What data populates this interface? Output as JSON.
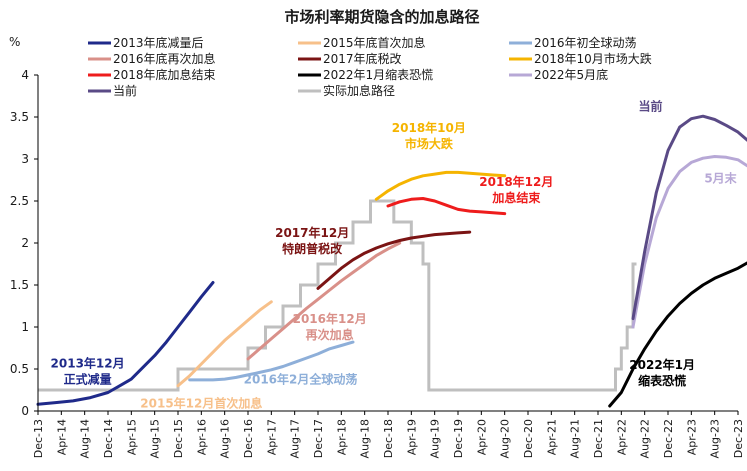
{
  "chart_data": {
    "type": "line",
    "title": "市场利率期货隐含的加息路径",
    "ylabel": "%",
    "ylim": [
      0,
      4
    ],
    "yticks": [
      "0",
      "0.5",
      "1",
      "1.5",
      "2",
      "2.5",
      "3",
      "3.5",
      "4"
    ],
    "grid": false,
    "legend_position": "top",
    "x_tick_labels": [
      "Dec-13",
      "Apr-14",
      "Aug-14",
      "Dec-14",
      "Apr-15",
      "Aug-15",
      "Dec-15",
      "Apr-16",
      "Aug-16",
      "Dec-16",
      "Apr-17",
      "Aug-17",
      "Dec-17",
      "Apr-18",
      "Aug-18",
      "Dec-18",
      "Apr-19",
      "Aug-19",
      "Dec-19",
      "Apr-20",
      "Aug-20",
      "Dec-20",
      "Apr-21",
      "Aug-21",
      "Dec-21",
      "Apr-22",
      "Aug-22",
      "Dec-22",
      "Apr-23",
      "Aug-23",
      "Dec-23"
    ],
    "x_unit": "months since Dec-13 (x tick every 4 months)",
    "series": [
      {
        "name": "2013年底减量后",
        "color": "#1f2a8a",
        "points": [
          [
            0,
            0.08
          ],
          [
            3,
            0.1
          ],
          [
            6,
            0.12
          ],
          [
            9,
            0.16
          ],
          [
            12,
            0.22
          ],
          [
            14,
            0.3
          ],
          [
            16,
            0.38
          ],
          [
            18,
            0.52
          ],
          [
            20,
            0.66
          ],
          [
            22,
            0.82
          ],
          [
            24,
            1.0
          ],
          [
            26,
            1.18
          ],
          [
            28,
            1.36
          ],
          [
            30,
            1.53
          ]
        ]
      },
      {
        "name": "2015年底首次加息",
        "color": "#f7c08a",
        "points": [
          [
            24,
            0.3
          ],
          [
            26,
            0.42
          ],
          [
            28,
            0.56
          ],
          [
            30,
            0.7
          ],
          [
            32,
            0.84
          ],
          [
            34,
            0.96
          ],
          [
            36,
            1.08
          ],
          [
            38,
            1.2
          ],
          [
            40,
            1.3
          ]
        ]
      },
      {
        "name": "2016年初全球动荡",
        "color": "#8eafd9",
        "points": [
          [
            26,
            0.37
          ],
          [
            28,
            0.37
          ],
          [
            30,
            0.37
          ],
          [
            32,
            0.38
          ],
          [
            34,
            0.4
          ],
          [
            36,
            0.43
          ],
          [
            38,
            0.46
          ],
          [
            40,
            0.49
          ],
          [
            42,
            0.53
          ],
          [
            44,
            0.58
          ],
          [
            46,
            0.63
          ],
          [
            48,
            0.68
          ],
          [
            50,
            0.74
          ],
          [
            52,
            0.78
          ],
          [
            54,
            0.82
          ]
        ]
      },
      {
        "name": "2016年底再次加息",
        "color": "#d99089",
        "points": [
          [
            36,
            0.62
          ],
          [
            38,
            0.74
          ],
          [
            40,
            0.86
          ],
          [
            42,
            0.98
          ],
          [
            44,
            1.1
          ],
          [
            46,
            1.22
          ],
          [
            48,
            1.33
          ],
          [
            50,
            1.44
          ],
          [
            52,
            1.55
          ],
          [
            54,
            1.65
          ],
          [
            56,
            1.75
          ],
          [
            58,
            1.85
          ],
          [
            60,
            1.93
          ],
          [
            62,
            2.0
          ]
        ]
      },
      {
        "name": "2017年底税改",
        "color": "#7b1414",
        "points": [
          [
            48,
            1.46
          ],
          [
            50,
            1.58
          ],
          [
            52,
            1.7
          ],
          [
            54,
            1.8
          ],
          [
            56,
            1.88
          ],
          [
            58,
            1.94
          ],
          [
            60,
            1.99
          ],
          [
            62,
            2.03
          ],
          [
            64,
            2.06
          ],
          [
            66,
            2.08
          ],
          [
            68,
            2.1
          ],
          [
            70,
            2.11
          ],
          [
            72,
            2.12
          ],
          [
            74,
            2.13
          ]
        ]
      },
      {
        "name": "2018年10月市场大跌",
        "color": "#f5b400",
        "points": [
          [
            58,
            2.52
          ],
          [
            60,
            2.62
          ],
          [
            62,
            2.7
          ],
          [
            64,
            2.76
          ],
          [
            66,
            2.8
          ],
          [
            68,
            2.82
          ],
          [
            70,
            2.84
          ],
          [
            72,
            2.84
          ],
          [
            74,
            2.83
          ],
          [
            76,
            2.82
          ],
          [
            78,
            2.81
          ],
          [
            80,
            2.8
          ]
        ]
      },
      {
        "name": "2018年底加息结束",
        "color": "#ee1c1c",
        "points": [
          [
            60,
            2.44
          ],
          [
            62,
            2.49
          ],
          [
            64,
            2.52
          ],
          [
            66,
            2.53
          ],
          [
            68,
            2.5
          ],
          [
            70,
            2.45
          ],
          [
            72,
            2.4
          ],
          [
            74,
            2.38
          ],
          [
            76,
            2.37
          ],
          [
            78,
            2.36
          ],
          [
            80,
            2.35
          ]
        ]
      },
      {
        "name": "2022年1月缩表恐慌",
        "color": "#000000",
        "points": [
          [
            98,
            0.06
          ],
          [
            100,
            0.22
          ],
          [
            102,
            0.5
          ],
          [
            104,
            0.74
          ],
          [
            106,
            0.95
          ],
          [
            108,
            1.13
          ],
          [
            110,
            1.28
          ],
          [
            112,
            1.4
          ],
          [
            114,
            1.5
          ],
          [
            116,
            1.58
          ],
          [
            118,
            1.64
          ],
          [
            120,
            1.7
          ],
          [
            122,
            1.78
          ]
        ]
      },
      {
        "name": "2022年5月底",
        "color": "#b7a8d6",
        "points": [
          [
            102,
            1.0
          ],
          [
            104,
            1.75
          ],
          [
            106,
            2.3
          ],
          [
            108,
            2.65
          ],
          [
            110,
            2.85
          ],
          [
            112,
            2.96
          ],
          [
            114,
            3.01
          ],
          [
            116,
            3.03
          ],
          [
            118,
            3.02
          ],
          [
            120,
            2.99
          ],
          [
            122,
            2.9
          ]
        ]
      },
      {
        "name": "当前",
        "color": "#5a4a86",
        "points": [
          [
            102,
            1.1
          ],
          [
            104,
            1.9
          ],
          [
            106,
            2.6
          ],
          [
            108,
            3.1
          ],
          [
            110,
            3.38
          ],
          [
            112,
            3.48
          ],
          [
            114,
            3.51
          ],
          [
            116,
            3.47
          ],
          [
            118,
            3.4
          ],
          [
            120,
            3.32
          ],
          [
            122,
            3.2
          ]
        ]
      },
      {
        "name": "实际加息路径",
        "color": "#bfbfbf",
        "steps": [
          [
            0,
            0.25
          ],
          [
            24,
            0.5
          ],
          [
            36,
            0.75
          ],
          [
            39,
            1.0
          ],
          [
            42,
            1.25
          ],
          [
            45,
            1.5
          ],
          [
            48,
            1.75
          ],
          [
            51,
            2.0
          ],
          [
            54,
            2.25
          ],
          [
            57,
            2.5
          ],
          [
            61,
            2.25
          ],
          [
            64,
            2.0
          ],
          [
            66,
            1.75
          ],
          [
            67,
            0.25
          ],
          [
            99,
            0.5
          ],
          [
            100,
            0.75
          ],
          [
            101,
            1.0
          ],
          [
            102,
            1.75
          ]
        ]
      }
    ],
    "legend": [
      {
        "label": "2013年底减量后",
        "color": "#1f2a8a"
      },
      {
        "label": "2015年底首次加息",
        "color": "#f7c08a"
      },
      {
        "label": "2016年初全球动荡",
        "color": "#8eafd9"
      },
      {
        "label": "2016年底再次加息",
        "color": "#d99089"
      },
      {
        "label": "2017年底税改",
        "color": "#7b1414"
      },
      {
        "label": "2018年10月市场大跌",
        "color": "#f5b400"
      },
      {
        "label": "2018年底加息结束",
        "color": "#ee1c1c"
      },
      {
        "label": "2022年1月缩表恐慌",
        "color": "#000000"
      },
      {
        "label": "2022年5月底",
        "color": "#b7a8d6"
      },
      {
        "label": "当前",
        "color": "#5a4a86"
      },
      {
        "label": "实际加息路径",
        "color": "#bfbfbf"
      }
    ],
    "annotations": [
      {
        "lines": [
          "2013年12月",
          "正式减量"
        ],
        "color": "#1f2a8a",
        "at": [
          8.5,
          0.52
        ]
      },
      {
        "lines": [
          "2015年12月首次加息"
        ],
        "color": "#f7c08a",
        "at": [
          28,
          0.04
        ]
      },
      {
        "lines": [
          "2016年2月全球动荡"
        ],
        "color": "#8eafd9",
        "at": [
          45,
          0.33
        ]
      },
      {
        "lines": [
          "2016年12月",
          "再次加息"
        ],
        "color": "#d99089",
        "at": [
          50,
          1.05
        ]
      },
      {
        "lines": [
          "2017年12月",
          "特朗普税改"
        ],
        "color": "#7b1414",
        "at": [
          47,
          2.07
        ]
      },
      {
        "lines": [
          "2018年10月",
          "市场大跌"
        ],
        "color": "#f5b400",
        "at": [
          67,
          3.32
        ]
      },
      {
        "lines": [
          "2018年12月",
          "加息结束"
        ],
        "color": "#ee1c1c",
        "at": [
          82,
          2.68
        ]
      },
      {
        "lines": [
          "2022年1月",
          "缩表恐慌"
        ],
        "color": "#000000",
        "at": [
          107,
          0.5
        ]
      },
      {
        "lines": [
          "当前"
        ],
        "color": "#5a4a86",
        "at": [
          105,
          3.58
        ]
      },
      {
        "lines": [
          "5月末"
        ],
        "color": "#b7a8d6",
        "at": [
          117,
          2.72
        ]
      }
    ]
  }
}
